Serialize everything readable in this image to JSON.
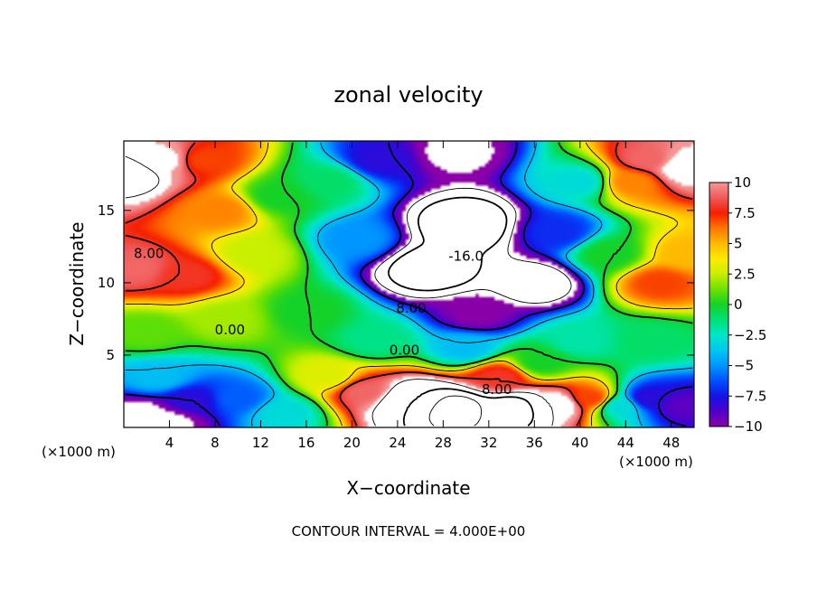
{
  "chart_data": {
    "type": "contour",
    "title": "zonal velocity",
    "xlabel": "X−coordinate",
    "ylabel": "Z−coordinate",
    "x_unit_left": "(×1000 m)",
    "x_unit_right": "(×1000 m)",
    "footer": "CONTOUR INTERVAL = 4.000E+00",
    "xlim": [
      0,
      50
    ],
    "ylim": [
      0,
      19.8
    ],
    "x_ticks": [
      4,
      8,
      12,
      16,
      20,
      24,
      28,
      32,
      36,
      40,
      44,
      48
    ],
    "y_ticks": [
      5,
      10,
      15
    ],
    "colorbar": {
      "min": -10,
      "max": 10,
      "ticks": [
        10,
        7.5,
        5,
        2.5,
        0,
        -2.5,
        -5,
        -7.5,
        -10
      ],
      "tick_labels": [
        "10",
        "7.5",
        "5",
        "2.5",
        "0",
        "−2.5",
        "−5",
        "−7.5",
        "−10"
      ]
    },
    "contour_interval": 4,
    "contour_labels": [
      {
        "text": "8.00",
        "x": 2.2,
        "z": 12.0
      },
      {
        "text": "0.00",
        "x": 9.3,
        "z": 6.7
      },
      {
        "text": "0.00",
        "x": 24.6,
        "z": 5.3
      },
      {
        "text": "8.00",
        "x": 25.2,
        "z": 8.2
      },
      {
        "text": "-16.0",
        "x": 30.0,
        "z": 11.8
      },
      {
        "text": "8.00",
        "x": 32.7,
        "z": 2.6
      }
    ],
    "features": [
      {
        "x": 0.5,
        "z": 17.5,
        "u": 13
      },
      {
        "x": 3.5,
        "z": 18.5,
        "u": 11
      },
      {
        "x": 7.0,
        "z": 18.5,
        "u": 7
      },
      {
        "x": 1.0,
        "z": 11.0,
        "u": 9
      },
      {
        "x": 5.5,
        "z": 10.5,
        "u": 8
      },
      {
        "x": 8.5,
        "z": 15.0,
        "u": 6
      },
      {
        "x": 11.5,
        "z": 12.0,
        "u": 2.5
      },
      {
        "x": 13.5,
        "z": 16.0,
        "u": 0
      },
      {
        "x": 18.0,
        "z": 17.0,
        "u": -1
      },
      {
        "x": 20.5,
        "z": 13.0,
        "u": -5
      },
      {
        "x": 22.5,
        "z": 18.5,
        "u": -8
      },
      {
        "x": 29.0,
        "z": 19.0,
        "u": -11
      },
      {
        "x": 30.0,
        "z": 14.0,
        "u": -20
      },
      {
        "x": 27.0,
        "z": 11.0,
        "u": -19
      },
      {
        "x": 36.0,
        "z": 10.0,
        "u": -14
      },
      {
        "x": 31.0,
        "z": 7.8,
        "u": -10
      },
      {
        "x": 38.0,
        "z": 13.5,
        "u": -7
      },
      {
        "x": 40.0,
        "z": 17.0,
        "u": -3
      },
      {
        "x": 42.5,
        "z": 12.0,
        "u": 0
      },
      {
        "x": 44.5,
        "z": 17.0,
        "u": 6
      },
      {
        "x": 46.0,
        "z": 18.5,
        "u": 9
      },
      {
        "x": 49.0,
        "z": 18.0,
        "u": 12
      },
      {
        "x": 47.0,
        "z": 10.0,
        "u": 7
      },
      {
        "x": 49.5,
        "z": 12.0,
        "u": 5
      },
      {
        "x": 2.0,
        "z": 6.5,
        "u": 1
      },
      {
        "x": 9.0,
        "z": 7.5,
        "u": 2
      },
      {
        "x": 16.0,
        "z": 8.0,
        "u": 0
      },
      {
        "x": 22.0,
        "z": 6.0,
        "u": -1.5
      },
      {
        "x": 30.0,
        "z": 5.5,
        "u": -4
      },
      {
        "x": 40.0,
        "z": 6.0,
        "u": -2
      },
      {
        "x": 46.0,
        "z": 6.0,
        "u": -1
      },
      {
        "x": 3.0,
        "z": 3.5,
        "u": -4
      },
      {
        "x": 6.0,
        "z": 1.8,
        "u": -8
      },
      {
        "x": 10.0,
        "z": 2.0,
        "u": -6
      },
      {
        "x": 14.0,
        "z": 1.0,
        "u": -3
      },
      {
        "x": 1.5,
        "z": 0.7,
        "u": -12
      },
      {
        "x": 4.0,
        "z": 0.4,
        "u": -11
      },
      {
        "x": 18.0,
        "z": 3.5,
        "u": 3
      },
      {
        "x": 21.0,
        "z": 2.5,
        "u": 9
      },
      {
        "x": 25.0,
        "z": 1.8,
        "u": 16
      },
      {
        "x": 29.0,
        "z": 1.2,
        "u": 22
      },
      {
        "x": 34.0,
        "z": 1.2,
        "u": 18
      },
      {
        "x": 38.0,
        "z": 1.5,
        "u": 12
      },
      {
        "x": 41.0,
        "z": 2.0,
        "u": 7
      },
      {
        "x": 33.0,
        "z": 3.5,
        "u": 8
      },
      {
        "x": 43.5,
        "z": 1.5,
        "u": -3
      },
      {
        "x": 46.0,
        "z": 2.0,
        "u": -8
      },
      {
        "x": 49.0,
        "z": 1.5,
        "u": -9
      },
      {
        "x": 36.5,
        "z": 4.5,
        "u": 0
      }
    ]
  }
}
